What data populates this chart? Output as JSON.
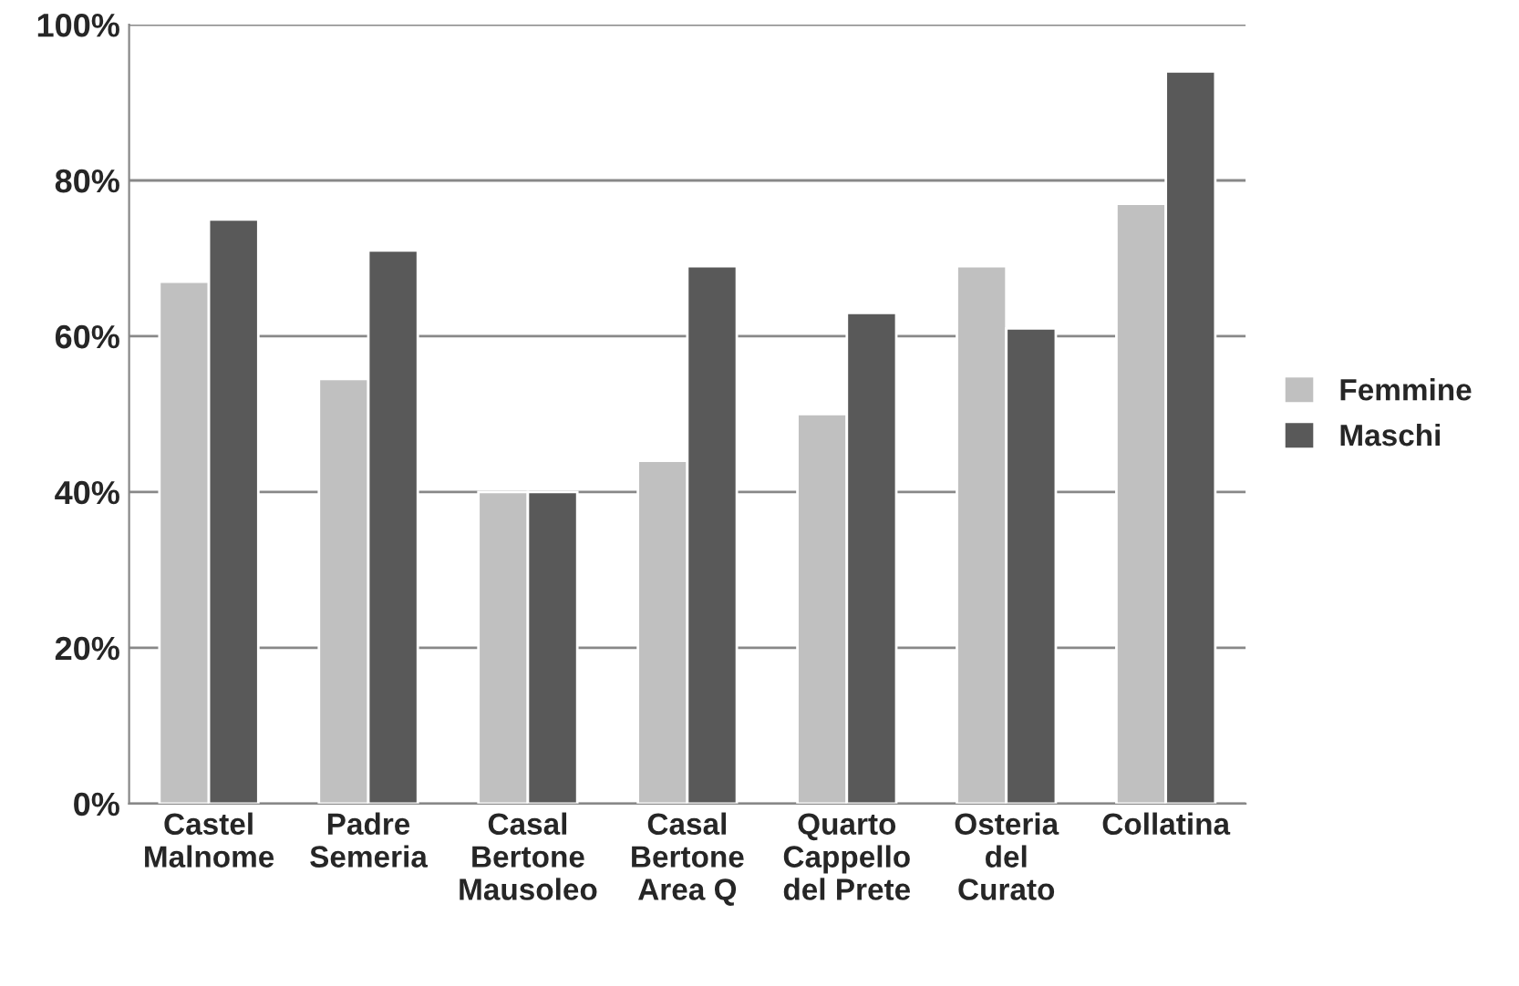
{
  "chart_data": {
    "type": "bar",
    "categories": [
      "Castel\nMalnome",
      "Padre\nSemeria",
      "Casal\nBertone\nMausoleo",
      "Casal\nBertone\nArea Q",
      "Quarto\nCappello\ndel Prete",
      "Osteria\ndel\nCurato",
      "Collatina"
    ],
    "series": [
      {
        "name": "Femmine",
        "color": "#c0c0c0",
        "values": [
          67,
          54.5,
          40,
          44,
          50,
          69,
          77
        ]
      },
      {
        "name": "Maschi",
        "color": "#595959",
        "values": [
          75,
          71,
          40,
          69,
          63,
          61,
          94
        ]
      }
    ],
    "ylim": [
      0,
      100
    ],
    "yticks": [
      {
        "value": 0,
        "label": "0%"
      },
      {
        "value": 20,
        "label": "20%"
      },
      {
        "value": 40,
        "label": "40%"
      },
      {
        "value": 60,
        "label": "60%"
      },
      {
        "value": 80,
        "label": "80%"
      },
      {
        "value": 100,
        "label": "100%"
      }
    ],
    "grid": "y",
    "legend": "right"
  }
}
